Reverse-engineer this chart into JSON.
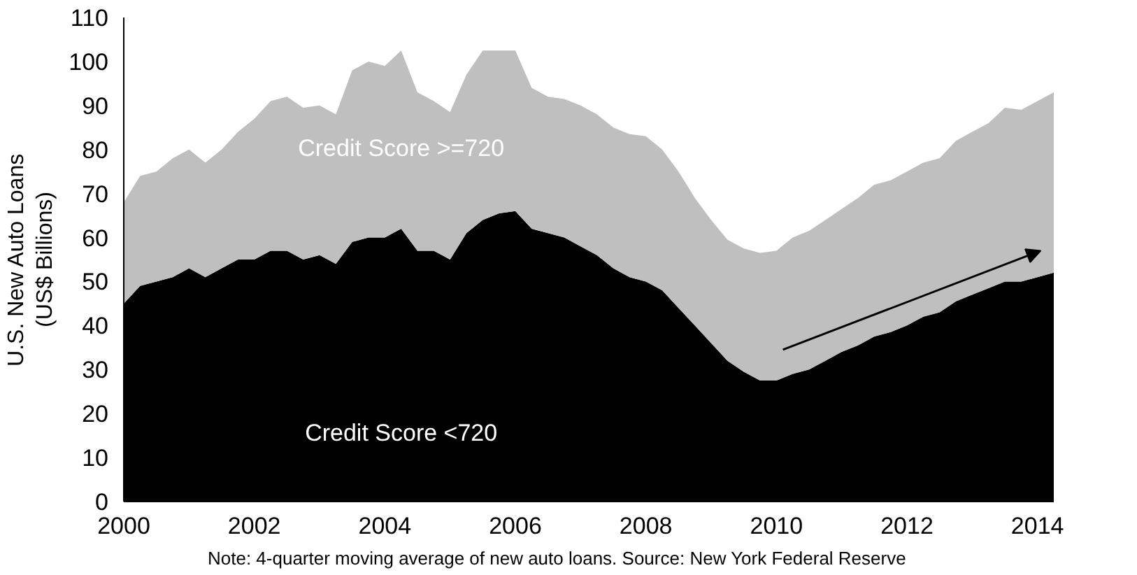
{
  "chart_data": {
    "type": "area",
    "stacked": true,
    "ylabel": "U.S. New Auto Loans\n(US$ Billions)",
    "x": [
      2000,
      2000.25,
      2000.5,
      2000.75,
      2001,
      2001.25,
      2001.5,
      2001.75,
      2002,
      2002.25,
      2002.5,
      2002.75,
      2003,
      2003.25,
      2003.5,
      2003.75,
      2004,
      2004.25,
      2004.5,
      2004.75,
      2005,
      2005.25,
      2005.5,
      2005.75,
      2006,
      2006.25,
      2006.5,
      2006.75,
      2007,
      2007.25,
      2007.5,
      2007.75,
      2008,
      2008.25,
      2008.5,
      2008.75,
      2009,
      2009.25,
      2009.5,
      2009.75,
      2010,
      2010.25,
      2010.5,
      2010.75,
      2011,
      2011.25,
      2011.5,
      2011.75,
      2012,
      2012.25,
      2012.5,
      2012.75,
      2013,
      2013.25,
      2013.5,
      2013.75,
      2014,
      2014.25
    ],
    "series": [
      {
        "name": "Credit Score <720",
        "color": "#000000",
        "values": [
          45,
          49,
          50,
          51,
          53,
          51,
          53,
          55,
          55,
          57,
          57,
          55,
          56,
          54,
          59,
          60,
          60,
          62,
          57,
          57,
          55,
          61,
          64,
          65.5,
          66,
          62,
          61,
          60,
          58,
          56,
          53,
          51,
          50,
          48,
          44,
          40,
          36,
          32,
          29.5,
          27.5,
          27.5,
          29,
          30,
          32,
          34,
          35.5,
          37.5,
          38.5,
          40,
          42,
          43,
          45.5,
          47,
          48.5,
          50,
          50,
          51,
          52
        ]
      },
      {
        "name": "Credit Score >=720",
        "color": "#bfbfbf",
        "values": [
          23,
          25,
          25,
          27,
          27,
          26,
          27,
          29,
          32,
          34,
          35,
          34.5,
          34,
          34,
          39,
          40,
          39,
          40.5,
          36,
          34,
          33.5,
          36,
          38.5,
          37,
          36.5,
          32,
          31,
          31.5,
          32,
          32,
          32,
          32.5,
          33,
          32,
          31,
          29,
          28,
          27.5,
          28,
          29,
          29.5,
          31,
          31.5,
          32,
          32.5,
          33.5,
          34.5,
          34.5,
          35,
          35,
          35,
          36.5,
          37,
          37.5,
          39.5,
          39,
          40,
          41
        ]
      }
    ],
    "xlim": [
      2000,
      2014.25
    ],
    "xticks": [
      2000,
      2002,
      2004,
      2006,
      2008,
      2010,
      2012,
      2014
    ],
    "ylim": [
      0,
      110
    ],
    "yticks": [
      0,
      10,
      20,
      30,
      40,
      50,
      60,
      70,
      80,
      90,
      100,
      110
    ],
    "grid": false,
    "legend": false,
    "annotations": [
      "Note: 4-quarter moving average of new auto loans. Source: New York Federal Reserve"
    ]
  }
}
